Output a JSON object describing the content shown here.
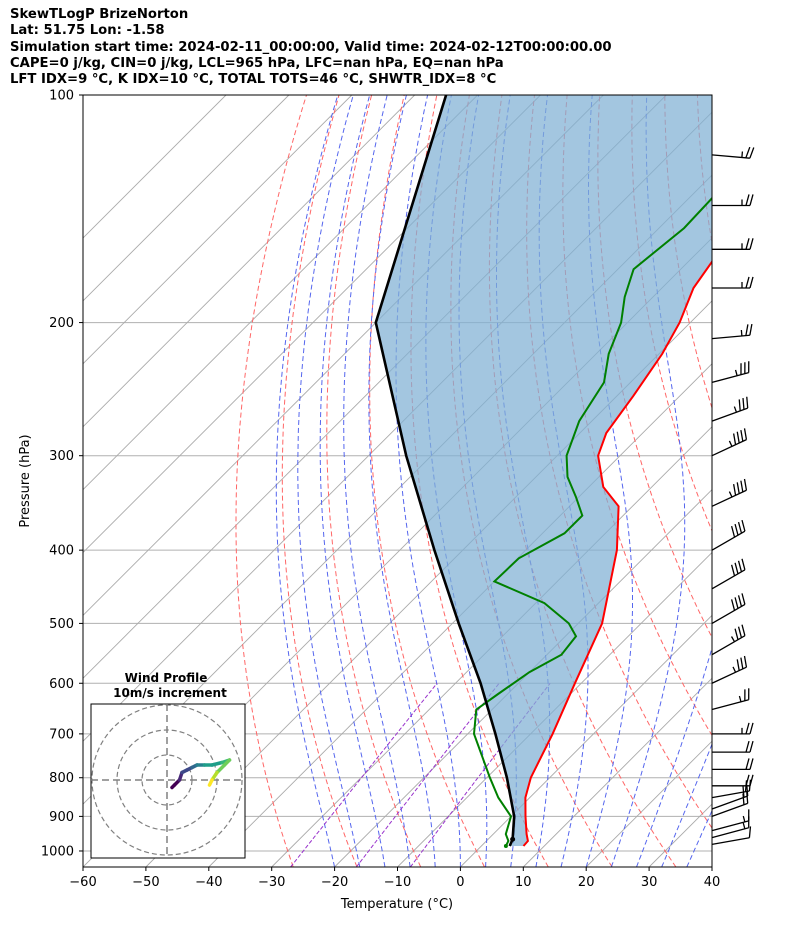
{
  "header": {
    "line1": "SkewTLogP BrizeNorton",
    "line2": "Lat: 51.75   Lon: -1.58",
    "line3": "Simulation start time: 2024-02-11_00:00:00, Valid time: 2024-02-12T00:00:00.00",
    "line4": "CAPE=0 j/kg, CIN=0 j/kg, LCL=965 hPa, LFC=nan hPa, EQ=nan hPa",
    "line5": "LFT IDX=9 °C, K IDX=10 °C, TOTAL TOTS=46 °C, SHWTR_IDX=8 °C"
  },
  "chart_data": {
    "type": "line",
    "xlabel": "Temperature (°C)",
    "ylabel": "Pressure (hPa)",
    "xlim": [
      -60,
      40
    ],
    "ylim": [
      1050,
      100
    ],
    "y_scale": "log",
    "x_ticks": [
      -60,
      -50,
      -40,
      -30,
      -20,
      -10,
      0,
      10,
      20,
      30,
      40
    ],
    "x_tick_labels": [
      "−60",
      "−50",
      "−40",
      "−30",
      "−20",
      "−10",
      "0",
      "10",
      "20",
      "30",
      "40"
    ],
    "y_ticks": [
      1000,
      900,
      800,
      700,
      600,
      500,
      400,
      300,
      200,
      100
    ],
    "grid": true,
    "skew": "skew-T log-P diagram with dry adiabats (red dashed), moist adiabats (blue dashed), mixing ratio lines (purple dashed), isotherms (gray)",
    "colors": {
      "temperature": "#ff0000",
      "dewpoint": "#008000",
      "parcel": "#000000",
      "cin_fill": "#7fb0d4",
      "dry_adiabat": "#ff6666",
      "moist_adiabat": "#5566ee",
      "mixing_ratio": "#9933cc",
      "isotherm": "#aaaaaa"
    },
    "series": [
      {
        "name": "temperature",
        "p": [
          985,
          970,
          950,
          900,
          850,
          800,
          700,
          600,
          500,
          400,
          350,
          330,
          300,
          280,
          250,
          220,
          200,
          180,
          160,
          140,
          120,
          100
        ],
        "values": [
          6.7,
          6.6,
          5.3,
          2.3,
          -0.7,
          -3.0,
          -6.5,
          -11.0,
          -16.2,
          -25.5,
          -32.2,
          -37.7,
          -43.5,
          -45.8,
          -47.4,
          -49.5,
          -51.7,
          -55.0,
          -56.8,
          -58.2,
          -59.0,
          -60.0
        ]
      },
      {
        "name": "dewpoint",
        "p": [
          985,
          970,
          950,
          900,
          850,
          800,
          700,
          650,
          620,
          580,
          550,
          520,
          500,
          470,
          440,
          410,
          380,
          360,
          340,
          320,
          300,
          270,
          240,
          220,
          200,
          185,
          170,
          150,
          130,
          100
        ],
        "values": [
          3.9,
          3.5,
          2.0,
          0.0,
          -5.0,
          -9.5,
          -19.0,
          -22.5,
          -21.5,
          -20.0,
          -17.7,
          -18.3,
          -21.5,
          -28.6,
          -40.0,
          -39.8,
          -36.5,
          -36.5,
          -40.5,
          -45.0,
          -48.5,
          -52.0,
          -54.2,
          -58.0,
          -61.0,
          -64.5,
          -67.5,
          -66.0,
          -66.5,
          -67.5
        ]
      },
      {
        "name": "parcel",
        "p": [
          985,
          965,
          900,
          800,
          700,
          600,
          500,
          400,
          300,
          200,
          100
        ],
        "values": [
          4.5,
          3.9,
          0.5,
          -6.8,
          -15.6,
          -26.0,
          -39.0,
          -54.5,
          -74.0,
          -100.0,
          -125.0
        ]
      }
    ],
    "wind_barbs": {
      "p": [
        980,
        960,
        940,
        900,
        880,
        850,
        820,
        780,
        740,
        700,
        650,
        600,
        550,
        500,
        450,
        400,
        350,
        300,
        270,
        240,
        210,
        180,
        160,
        140,
        120
      ],
      "speed_kt": [
        10,
        15,
        15,
        20,
        20,
        20,
        20,
        20,
        20,
        25,
        25,
        35,
        35,
        40,
        40,
        40,
        45,
        45,
        35,
        35,
        25,
        25,
        25,
        25,
        25
      ],
      "direction_deg": [
        260,
        255,
        255,
        250,
        250,
        260,
        270,
        270,
        270,
        270,
        255,
        245,
        240,
        240,
        240,
        240,
        245,
        245,
        250,
        255,
        265,
        270,
        270,
        270,
        275
      ]
    },
    "inset": {
      "title_line1": "Wind Profile",
      "title_line2": "10m/s increment",
      "type": "hodograph",
      "rings": [
        10,
        20,
        30
      ],
      "colormap": "viridis",
      "u": [
        2,
        3,
        5,
        6,
        8,
        10,
        12,
        15,
        18,
        22,
        25,
        23,
        20,
        18,
        17
      ],
      "v": [
        -3,
        -2,
        0,
        3,
        4,
        5,
        6,
        6,
        6,
        7,
        8,
        6,
        3,
        0,
        -2
      ]
    }
  }
}
